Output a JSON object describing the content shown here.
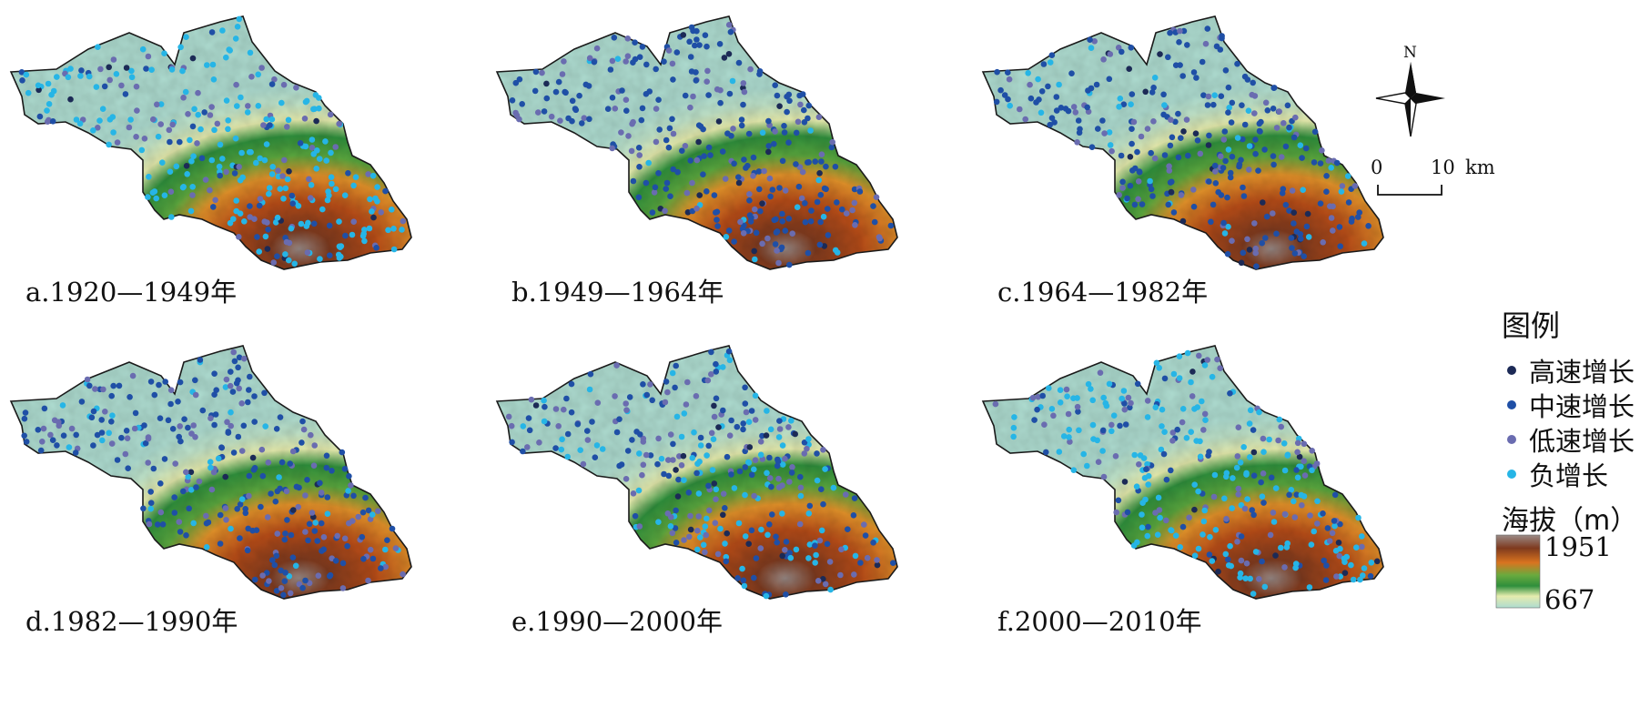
{
  "panels": [
    {
      "label": "a.1920—1949年",
      "mix": [
        0.03,
        0.12,
        0.25,
        0.6
      ]
    },
    {
      "label": "b.1949—1964年",
      "mix": [
        0.05,
        0.62,
        0.28,
        0.05
      ]
    },
    {
      "label": "c.1964—1982年",
      "mix": [
        0.04,
        0.6,
        0.26,
        0.1
      ]
    },
    {
      "label": "d.1982—1990年",
      "mix": [
        0.04,
        0.55,
        0.26,
        0.15
      ]
    },
    {
      "label": "e.1990—2000年",
      "mix": [
        0.04,
        0.4,
        0.28,
        0.28
      ]
    },
    {
      "label": "f.2000—2010年",
      "mix": [
        0.04,
        0.12,
        0.2,
        0.64
      ]
    }
  ],
  "legend": {
    "title": "图例",
    "items": [
      {
        "label": "高速增长",
        "color": "#1c2a56"
      },
      {
        "label": "中速增长",
        "color": "#1f4fa6"
      },
      {
        "label": "低速增长",
        "color": "#6a6cb0"
      },
      {
        "label": "负增长",
        "color": "#26b5e6"
      }
    ],
    "elevation_title": "海拔（m）",
    "elevation_max": "1951",
    "elevation_min": "667"
  },
  "north_label": "N",
  "scale": {
    "zero": "0",
    "ten": "10",
    "unit": "km"
  }
}
